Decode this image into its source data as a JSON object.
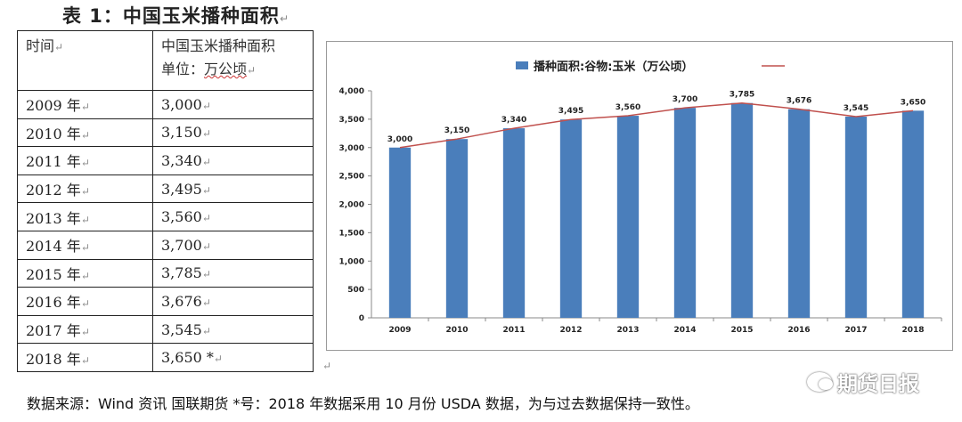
{
  "title": "表 1：中国玉米播种面积",
  "table": {
    "header_col1": "时间",
    "header_col2_line1": "中国玉米播种面积",
    "header_col2_line2_prefix": "单位：",
    "header_col2_line2_unit": "万公顷",
    "rows": [
      {
        "year": "2009 年",
        "value": "3,000"
      },
      {
        "year": "2010 年",
        "value": "3,150"
      },
      {
        "year": "2011 年",
        "value": "3,340"
      },
      {
        "year": "2012 年",
        "value": "3,495"
      },
      {
        "year": "2013 年",
        "value": "3,560"
      },
      {
        "year": "2014 年",
        "value": "3,700"
      },
      {
        "year": "2015 年",
        "value": "3,785"
      },
      {
        "year": "2016 年",
        "value": "3,676"
      },
      {
        "year": "2017 年",
        "value": "3,545"
      },
      {
        "year": "2018 年",
        "value": "3,650 *"
      }
    ]
  },
  "chart_data": {
    "type": "bar",
    "categories": [
      "2009",
      "2010",
      "2011",
      "2012",
      "2013",
      "2014",
      "2015",
      "2016",
      "2017",
      "2018"
    ],
    "series": [
      {
        "name": "播种面积:谷物:玉米（万公顷）",
        "type": "bar",
        "values": [
          3000,
          3150,
          3340,
          3495,
          3560,
          3700,
          3785,
          3676,
          3545,
          3650
        ]
      },
      {
        "name": "",
        "type": "line",
        "values": [
          3000,
          3150,
          3340,
          3495,
          3560,
          3700,
          3785,
          3676,
          3545,
          3650
        ]
      }
    ],
    "data_labels": [
      "3,000",
      "3,150",
      "3,340",
      "3,495",
      "3,560",
      "3,700",
      "3,785",
      "3,676",
      "3,545",
      "3,650"
    ],
    "ylim": [
      0,
      4000
    ],
    "yticks": [
      0,
      500,
      1000,
      1500,
      2000,
      2500,
      3000,
      3500,
      4000
    ],
    "ytick_labels": [
      "0",
      "500",
      "1,000",
      "1,500",
      "2,000",
      "2,500",
      "3,000",
      "3,500",
      "4,000"
    ],
    "legend_position": "top",
    "grid": false,
    "colors": {
      "bar": "#4a7ebb",
      "line": "#c0504d"
    }
  },
  "source_note": "数据来源：Wind 资讯  国联期货  *号：2018 年数据采用 10 月份 USDA 数据，为与过去数据保持一致性。",
  "watermark": "期货日报"
}
